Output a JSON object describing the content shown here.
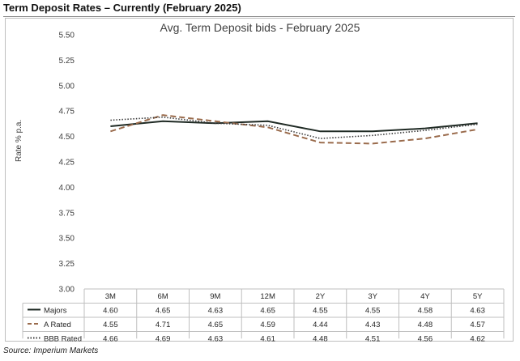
{
  "page": {
    "heading": "Term Deposit Rates – Currently (February 2025)",
    "source": "Source: Imperium Markets"
  },
  "chart_data": {
    "type": "line",
    "title": "Avg. Term Deposit bids - February 2025",
    "xlabel": "",
    "ylabel": "Rate % p.a.",
    "categories": [
      "3M",
      "6M",
      "9M",
      "12M",
      "2Y",
      "3Y",
      "4Y",
      "5Y"
    ],
    "ylim": [
      3.0,
      5.5
    ],
    "yticks": [
      "5.50",
      "5.25",
      "5.00",
      "4.75",
      "4.50",
      "4.25",
      "4.00",
      "3.75",
      "3.50",
      "3.25",
      "3.00"
    ],
    "grid": false,
    "legend": "data-table-below",
    "series": [
      {
        "name": "Majors",
        "values": [
          4.6,
          4.65,
          4.63,
          4.65,
          4.55,
          4.55,
          4.58,
          4.63
        ],
        "labels": [
          "4.60",
          "4.65",
          "4.63",
          "4.65",
          "4.55",
          "4.55",
          "4.58",
          "4.63"
        ],
        "color": "#1f2a24",
        "style": "solid"
      },
      {
        "name": "A Rated",
        "values": [
          4.55,
          4.71,
          4.65,
          4.59,
          4.44,
          4.43,
          4.48,
          4.57
        ],
        "labels": [
          "4.55",
          "4.71",
          "4.65",
          "4.59",
          "4.44",
          "4.43",
          "4.48",
          "4.57"
        ],
        "color": "#9a6b4c",
        "style": "dashed"
      },
      {
        "name": "BBB Rated",
        "values": [
          4.66,
          4.69,
          4.63,
          4.61,
          4.48,
          4.51,
          4.56,
          4.62
        ],
        "labels": [
          "4.66",
          "4.69",
          "4.63",
          "4.61",
          "4.48",
          "4.51",
          "4.56",
          "4.62"
        ],
        "color": "#3a3a3a",
        "style": "dotted"
      }
    ]
  }
}
